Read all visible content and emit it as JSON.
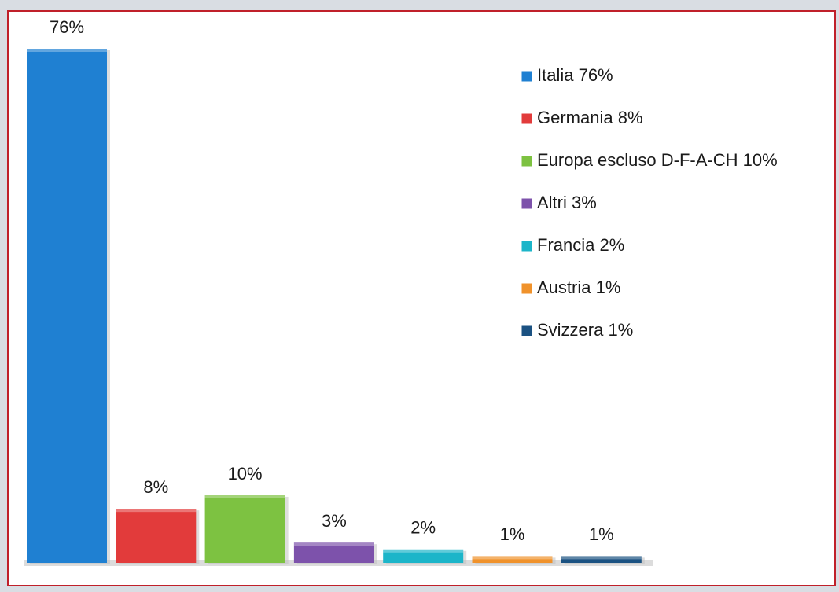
{
  "chart_data": {
    "type": "bar",
    "categories": [
      "Italia 76%",
      "Germania 8%",
      "Europa escluso D-F-A-CH 10%",
      "Altri 3%",
      "Francia 2%",
      "Austria 1%",
      "Svizzera 1%"
    ],
    "values": [
      76,
      8,
      10,
      3,
      2,
      1,
      1
    ],
    "value_labels": [
      "76%",
      "8%",
      "10%",
      "3%",
      "2%",
      "1%",
      "1%"
    ],
    "colors": [
      "#1f80d2",
      "#e23b3b",
      "#7dc241",
      "#7d52ab",
      "#1cb5c9",
      "#f0922b",
      "#1b5282"
    ],
    "legend": "top-right"
  }
}
